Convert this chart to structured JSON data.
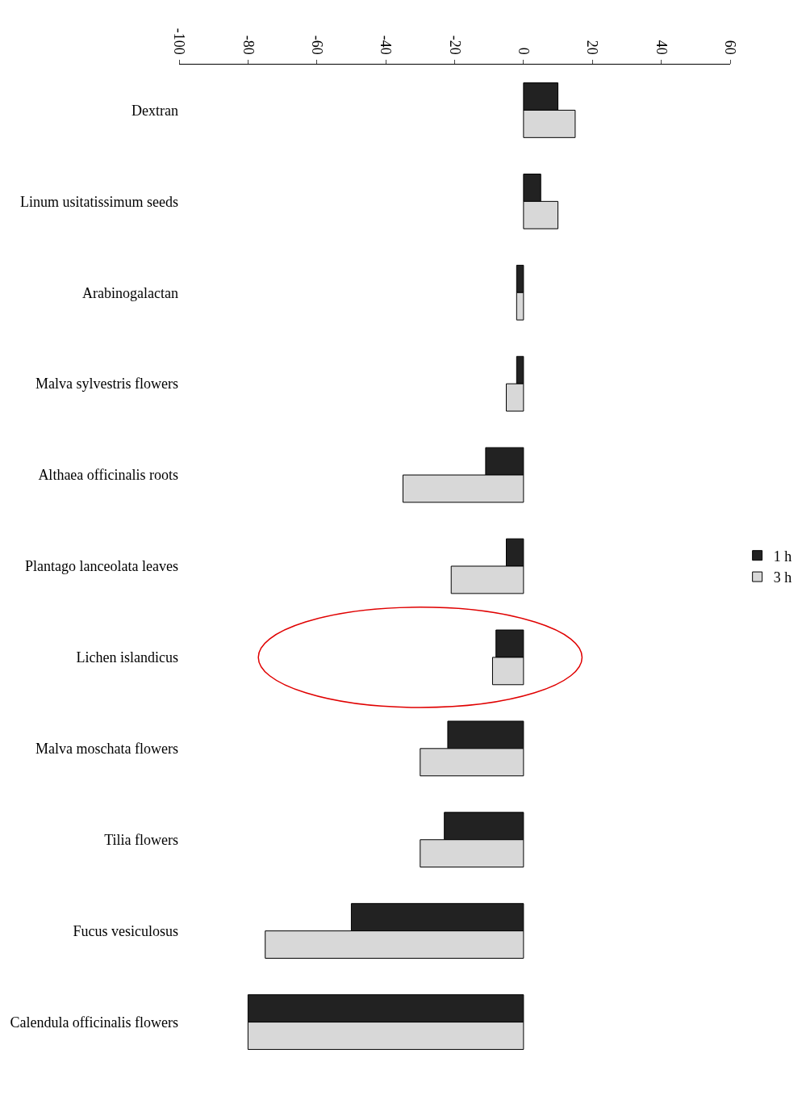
{
  "chart_data": {
    "type": "bar",
    "orientation": "horizontal",
    "categories": [
      "Dextran",
      "Linum usitatissimum seeds",
      "Arabinogalactan",
      "Malva sylvestris flowers",
      "Althaea officinalis roots",
      "Plantago lanceolata leaves",
      "Lichen islandicus",
      "Malva moschata flowers",
      "Tilia flowers",
      "Fucus vesiculosus",
      "Calendula officinalis flowers"
    ],
    "series": [
      {
        "name": "1 h",
        "color": "#222222",
        "values": [
          10,
          5,
          -2,
          -2,
          -11,
          -5,
          -8,
          -22,
          -23,
          -50,
          -80
        ]
      },
      {
        "name": "3 h",
        "color": "#d8d8d8",
        "values": [
          15,
          10,
          -2,
          -5,
          -35,
          -21,
          -9,
          -30,
          -30,
          -75,
          -80
        ]
      }
    ],
    "xlim": [
      -100,
      60
    ],
    "xticks": [
      -100,
      -80,
      -60,
      -40,
      -20,
      0,
      20,
      40,
      60
    ],
    "legend": "right"
  }
}
